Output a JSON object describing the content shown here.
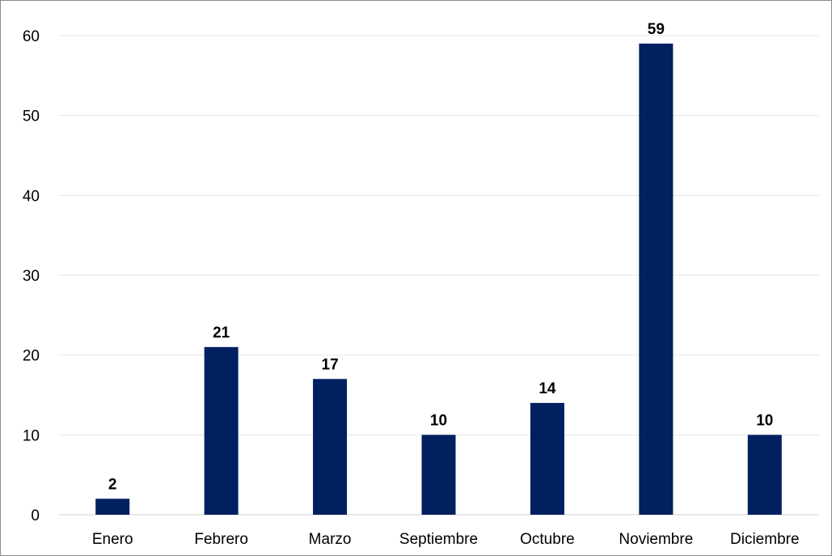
{
  "chart_data": {
    "type": "bar",
    "categories": [
      "Enero",
      "Febrero",
      "Marzo",
      "Septiembre",
      "Octubre",
      "Noviembre",
      "Diciembre"
    ],
    "series": [
      {
        "values": [
          2,
          21,
          17,
          10,
          14,
          59,
          10
        ],
        "color": "#002060"
      }
    ],
    "title": "",
    "xlabel": "",
    "ylabel": "",
    "ylim": [
      0,
      60
    ],
    "yticks": [
      0,
      10,
      20,
      30,
      40,
      50,
      60
    ],
    "grid": true,
    "legend": "none",
    "data_labels": true
  }
}
